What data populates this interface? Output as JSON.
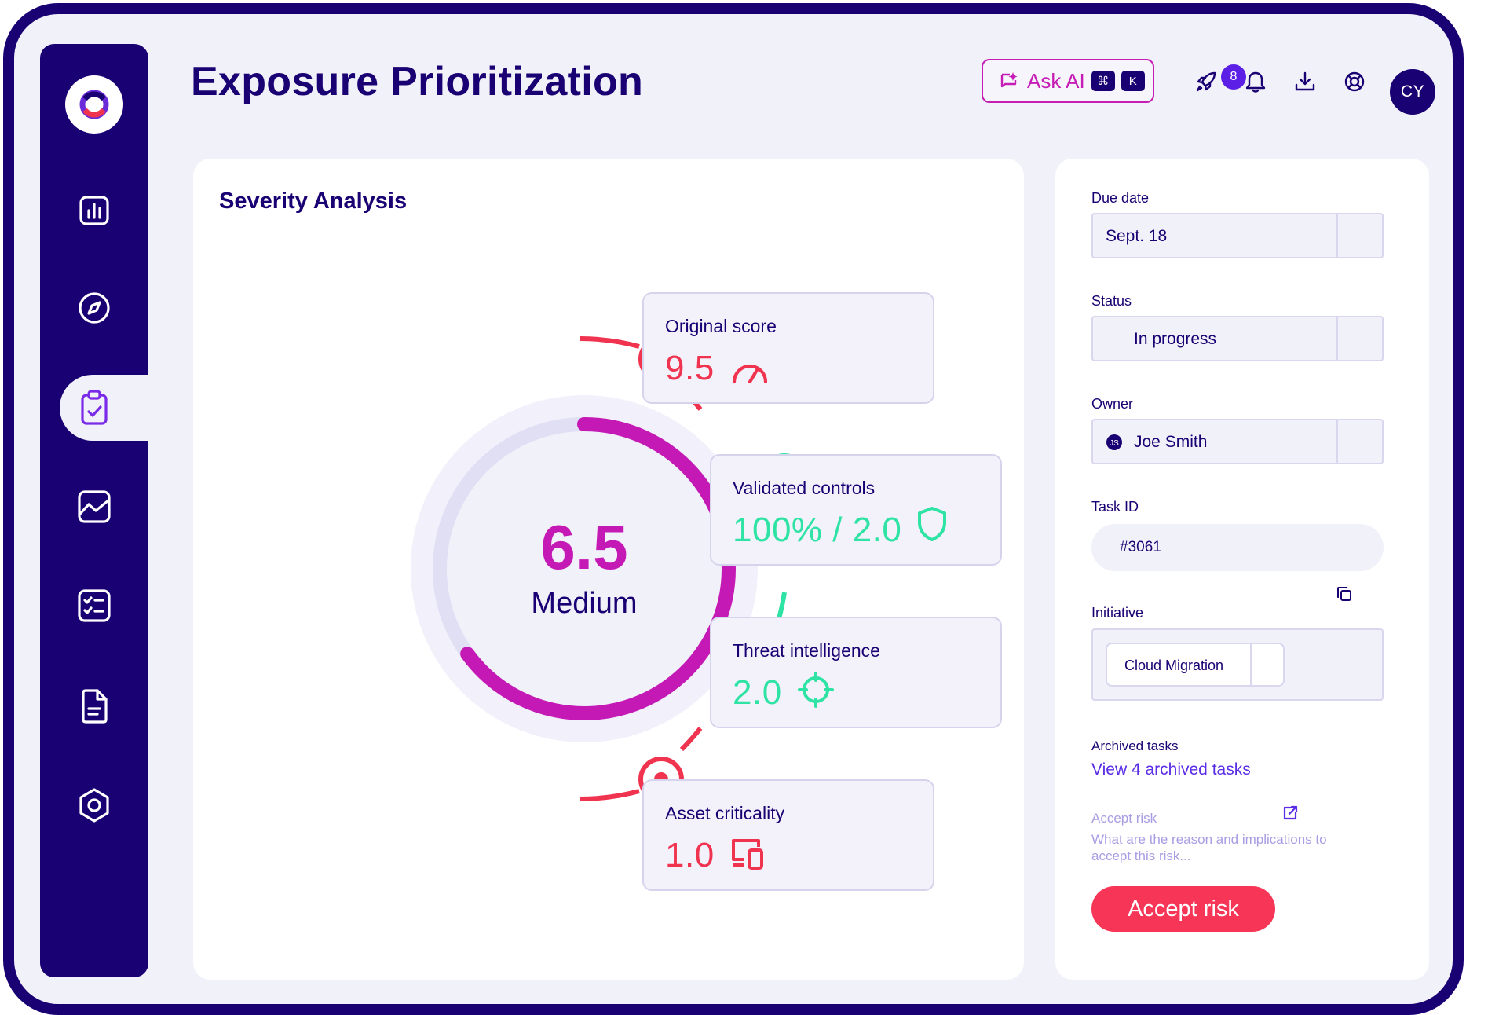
{
  "page": {
    "title": "Exposure Prioritization"
  },
  "header": {
    "ask_ai": {
      "label": "Ask AI",
      "shortcut_keys": [
        "⌘",
        "K"
      ]
    },
    "notifications_count": "8",
    "avatar_initials": "CY",
    "icons": [
      "rocket-icon",
      "bell-icon",
      "download-icon",
      "lifebuoy-icon"
    ]
  },
  "sidebar": {
    "items": [
      {
        "icon": "dashboard-chart-icon",
        "active": false
      },
      {
        "icon": "compass-icon",
        "active": false
      },
      {
        "icon": "clipboard-check-icon",
        "active": true
      },
      {
        "icon": "trend-chart-icon",
        "active": false
      },
      {
        "icon": "checklist-icon",
        "active": false
      },
      {
        "icon": "document-icon",
        "active": false
      },
      {
        "icon": "settings-hexagon-icon",
        "active": false
      }
    ]
  },
  "severity": {
    "title": "Severity Analysis",
    "score": "6.5",
    "level": "Medium",
    "score_fraction": 0.65,
    "factors": [
      {
        "title": "Original score",
        "value": "9.5",
        "icon": "gauge-icon",
        "color": "#f0344f"
      },
      {
        "title": "Validated controls",
        "value": "100% / 2.0",
        "icon": "shield-icon",
        "color": "#2ee3a4"
      },
      {
        "title": "Threat intelligence",
        "value": "2.0",
        "icon": "crosshair-icon",
        "color": "#2ee3a4"
      },
      {
        "title": "Asset criticality",
        "value": "1.0",
        "icon": "devices-icon",
        "color": "#f0344f"
      }
    ]
  },
  "task": {
    "due_date": {
      "label": "Due date",
      "value": "Sept. 18"
    },
    "status": {
      "label": "Status",
      "value": "In progress"
    },
    "owner": {
      "label": "Owner",
      "value": "Joe Smith"
    },
    "task_id": {
      "label": "Task ID",
      "value": "#3061"
    },
    "initiative": {
      "label": "Initiative",
      "value": "Cloud Migration"
    },
    "archived": {
      "label": "Archived tasks",
      "link": "View 4 archived tasks"
    },
    "accept_risk": {
      "label": "Accept risk",
      "placeholder": "What are the reason and implications to accept this risk...",
      "button": "Accept risk"
    }
  },
  "colors": {
    "navy": "#1a0173",
    "magenta": "#c519b5",
    "green": "#2ee3a4",
    "red": "#f0344f",
    "accept_button": "#f73556",
    "link": "#5b2de6"
  }
}
